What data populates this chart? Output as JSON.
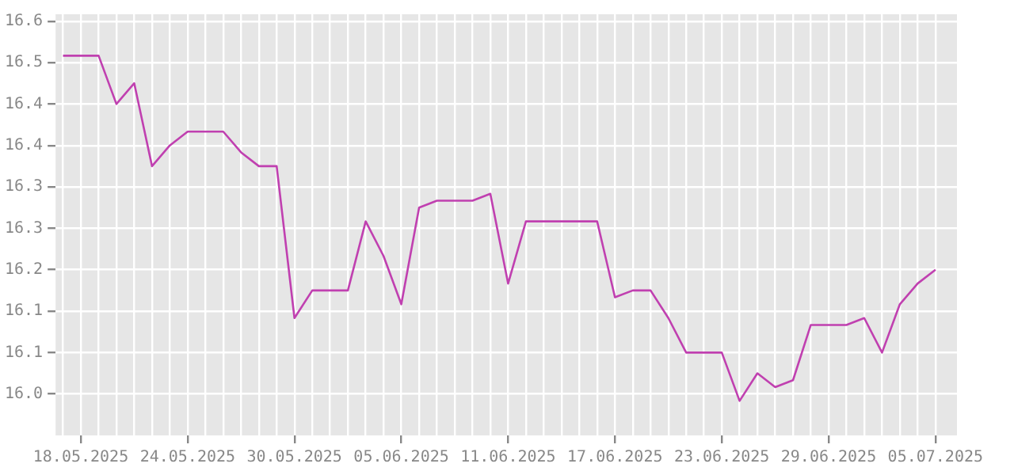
{
  "chart_data": {
    "type": "line",
    "x": [
      "2025-05-17",
      "2025-05-18",
      "2025-05-19",
      "2025-05-20",
      "2025-05-21",
      "2025-05-22",
      "2025-05-23",
      "2025-05-24",
      "2025-05-25",
      "2025-05-26",
      "2025-05-27",
      "2025-05-28",
      "2025-05-29",
      "2025-05-30",
      "2025-05-31",
      "2025-06-01",
      "2025-06-02",
      "2025-06-03",
      "2025-06-04",
      "2025-06-05",
      "2025-06-06",
      "2025-06-07",
      "2025-06-08",
      "2025-06-09",
      "2025-06-10",
      "2025-06-11",
      "2025-06-12",
      "2025-06-13",
      "2025-06-14",
      "2025-06-15",
      "2025-06-16",
      "2025-06-17",
      "2025-06-18",
      "2025-06-19",
      "2025-06-20",
      "2025-06-21",
      "2025-06-22",
      "2025-06-23",
      "2025-06-24",
      "2025-06-25",
      "2025-06-26",
      "2025-06-27",
      "2025-06-28",
      "2025-06-29",
      "2025-06-30",
      "2025-07-01",
      "2025-07-02",
      "2025-07-03",
      "2025-07-04",
      "2025-07-05"
    ],
    "series": [
      {
        "color": "#c040b0",
        "values": [
          16.51,
          16.51,
          16.51,
          16.44,
          16.47,
          16.35,
          16.38,
          16.4,
          16.4,
          16.4,
          16.37,
          16.35,
          16.35,
          16.13,
          16.17,
          16.17,
          16.17,
          16.27,
          16.22,
          16.15,
          16.29,
          16.3,
          16.3,
          16.3,
          16.31,
          16.18,
          16.27,
          16.27,
          16.27,
          16.27,
          16.27,
          16.16,
          16.17,
          16.17,
          16.13,
          16.08,
          16.08,
          16.08,
          16.01,
          16.05,
          16.03,
          16.04,
          16.12,
          16.12,
          16.12,
          16.13,
          16.08,
          16.15,
          16.18,
          16.2
        ]
      }
    ],
    "xlim": [
      "2025-05-16T14:00",
      "2025-07-06T05:00"
    ],
    "xticks": [
      {
        "value": "2025-05-17",
        "label": null
      },
      {
        "value": "2025-05-18",
        "label": "18.05.2025"
      },
      {
        "value": "2025-05-19",
        "label": null
      },
      {
        "value": "2025-05-20",
        "label": null
      },
      {
        "value": "2025-05-21",
        "label": null
      },
      {
        "value": "2025-05-22",
        "label": null
      },
      {
        "value": "2025-05-23",
        "label": null
      },
      {
        "value": "2025-05-24",
        "label": "24.05.2025"
      },
      {
        "value": "2025-05-25",
        "label": null
      },
      {
        "value": "2025-05-26",
        "label": null
      },
      {
        "value": "2025-05-27",
        "label": null
      },
      {
        "value": "2025-05-28",
        "label": null
      },
      {
        "value": "2025-05-29",
        "label": null
      },
      {
        "value": "2025-05-30",
        "label": "30.05.2025"
      },
      {
        "value": "2025-05-31",
        "label": null
      },
      {
        "value": "2025-06-01",
        "label": null
      },
      {
        "value": "2025-06-02",
        "label": null
      },
      {
        "value": "2025-06-03",
        "label": null
      },
      {
        "value": "2025-06-04",
        "label": null
      },
      {
        "value": "2025-06-05",
        "label": "05.06.2025"
      },
      {
        "value": "2025-06-06",
        "label": null
      },
      {
        "value": "2025-06-07",
        "label": null
      },
      {
        "value": "2025-06-08",
        "label": null
      },
      {
        "value": "2025-06-09",
        "label": null
      },
      {
        "value": "2025-06-10",
        "label": null
      },
      {
        "value": "2025-06-11",
        "label": "11.06.2025"
      },
      {
        "value": "2025-06-12",
        "label": null
      },
      {
        "value": "2025-06-13",
        "label": null
      },
      {
        "value": "2025-06-14",
        "label": null
      },
      {
        "value": "2025-06-15",
        "label": null
      },
      {
        "value": "2025-06-16",
        "label": null
      },
      {
        "value": "2025-06-17",
        "label": "17.06.2025"
      },
      {
        "value": "2025-06-18",
        "label": null
      },
      {
        "value": "2025-06-19",
        "label": null
      },
      {
        "value": "2025-06-20",
        "label": null
      },
      {
        "value": "2025-06-21",
        "label": null
      },
      {
        "value": "2025-06-22",
        "label": null
      },
      {
        "value": "2025-06-23",
        "label": "23.06.2025"
      },
      {
        "value": "2025-06-24",
        "label": null
      },
      {
        "value": "2025-06-25",
        "label": null
      },
      {
        "value": "2025-06-26",
        "label": null
      },
      {
        "value": "2025-06-27",
        "label": null
      },
      {
        "value": "2025-06-28",
        "label": null
      },
      {
        "value": "2025-06-29",
        "label": "29.06.2025"
      },
      {
        "value": "2025-06-30",
        "label": null
      },
      {
        "value": "2025-07-01",
        "label": null
      },
      {
        "value": "2025-07-02",
        "label": null
      },
      {
        "value": "2025-07-03",
        "label": null
      },
      {
        "value": "2025-07-04",
        "label": null
      },
      {
        "value": "2025-07-05",
        "label": "05.07.2025"
      }
    ],
    "ylim": [
      15.96,
      16.57
    ],
    "yticks": [
      {
        "value": 16.02,
        "label": "16.0"
      },
      {
        "value": 16.08,
        "label": "16.1"
      },
      {
        "value": 16.14,
        "label": "16.1"
      },
      {
        "value": 16.2,
        "label": "16.2"
      },
      {
        "value": 16.26,
        "label": "16.3"
      },
      {
        "value": 16.32,
        "label": "16.3"
      },
      {
        "value": 16.38,
        "label": "16.4"
      },
      {
        "value": 16.44,
        "label": "16.4"
      },
      {
        "value": 16.5,
        "label": "16.5"
      },
      {
        "value": 16.56,
        "label": "16.6"
      }
    ],
    "grid": true,
    "legend": false,
    "marker": "none",
    "line_style": "solid"
  }
}
